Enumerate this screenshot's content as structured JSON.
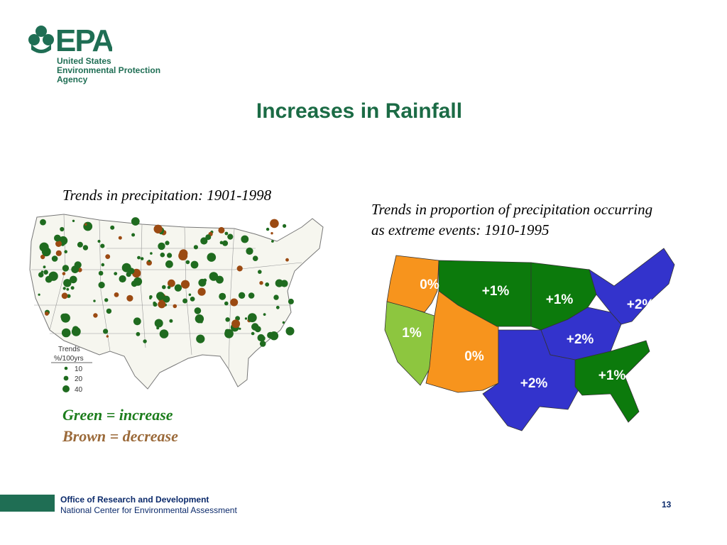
{
  "logo": {
    "acronym": "EPA",
    "lines": [
      "United States",
      "Environmental Protection",
      "Agency"
    ]
  },
  "title": "Increases in Rainfall",
  "left_panel": {
    "caption": "Trends in precipitation: 1901-1998",
    "legend": {
      "title": "Trends",
      "units": "%/100yrs",
      "sizes": [
        "10",
        "20",
        "40"
      ]
    }
  },
  "right_panel": {
    "caption_line1": "Trends in proportion of precipitation occurring",
    "caption_line2": "as extreme events: 1910-1995",
    "regions": [
      {
        "id": "northwest",
        "label": "0%",
        "color": "#f7941d"
      },
      {
        "id": "west",
        "label": "1%",
        "color": "#8dc63f"
      },
      {
        "id": "southwest",
        "label": "0%",
        "color": "#f7941d"
      },
      {
        "id": "west-north-central",
        "label": "+1%",
        "color": "#0c7a0c"
      },
      {
        "id": "east-north-central",
        "label": "+1%",
        "color": "#0c7a0c"
      },
      {
        "id": "central",
        "label": "+2%",
        "color": "#3333cc"
      },
      {
        "id": "northeast",
        "label": "+2%",
        "color": "#3333cc"
      },
      {
        "id": "south",
        "label": "+2%",
        "color": "#3333cc"
      },
      {
        "id": "southeast",
        "label": "+1%",
        "color": "#0c7a0c"
      }
    ]
  },
  "color_legend": {
    "green": "Green = increase",
    "brown": "Brown = decrease"
  },
  "colors": {
    "increase": "#1f6b1f",
    "decrease": "#9b4a12",
    "epa_green": "#1f6e54",
    "title_green": "#1b6b45"
  },
  "footer": {
    "line1": "Office of Research and Development",
    "line2": "National Center for Environmental Assessment",
    "page_number": "13"
  }
}
